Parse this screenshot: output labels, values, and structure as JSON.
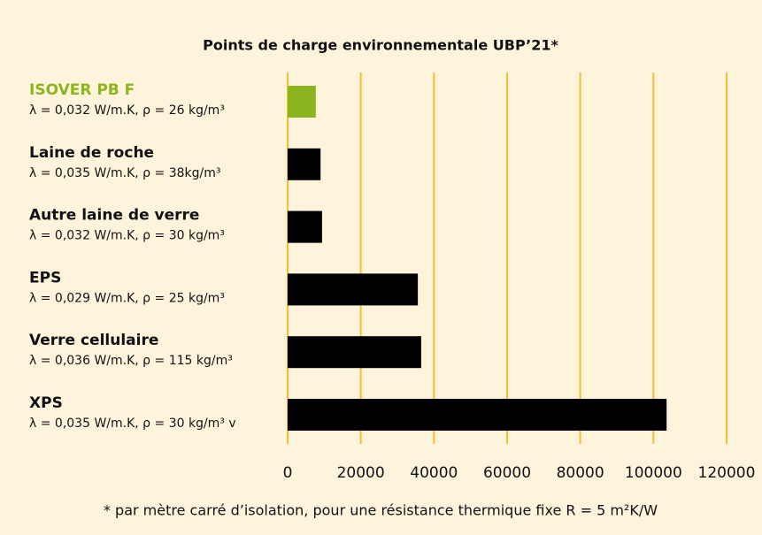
{
  "chart_data": {
    "type": "bar",
    "orientation": "horizontal",
    "title": "Points de charge environnementale UBP’21*",
    "categories": [
      "ISOVER PB F",
      "Laine de roche",
      "Autre laine de verre",
      "EPS",
      "Verre cellulaire",
      "XPS"
    ],
    "category_details": [
      "λ = 0,032 W/m.K, ρ = 26 kg/m³",
      "λ = 0,035 W/m.K, ρ = 38kg/m³",
      "λ = 0,032 W/m.K, ρ = 30 kg/m³",
      "λ = 0,029 W/m.K, ρ = 25 kg/m³",
      "λ = 0,036 W/m.K, ρ = 115 kg/m³",
      "λ = 0,035 W/m.K, ρ = 30 kg/m³ v"
    ],
    "values": [
      7700,
      9000,
      9400,
      35600,
      36500,
      103600
    ],
    "colors": [
      "#8ab51e",
      "#000000",
      "#000000",
      "#000000",
      "#000000",
      "#000000"
    ],
    "xlim": [
      0,
      120000
    ],
    "xticks": [
      0,
      20000,
      40000,
      60000,
      80000,
      100000,
      120000
    ],
    "grid": true,
    "grid_color": "#f2c12e",
    "footnote": "* par mètre carré d’isolation, pour une résistance thermique fixe R = 5 m²K/W"
  }
}
